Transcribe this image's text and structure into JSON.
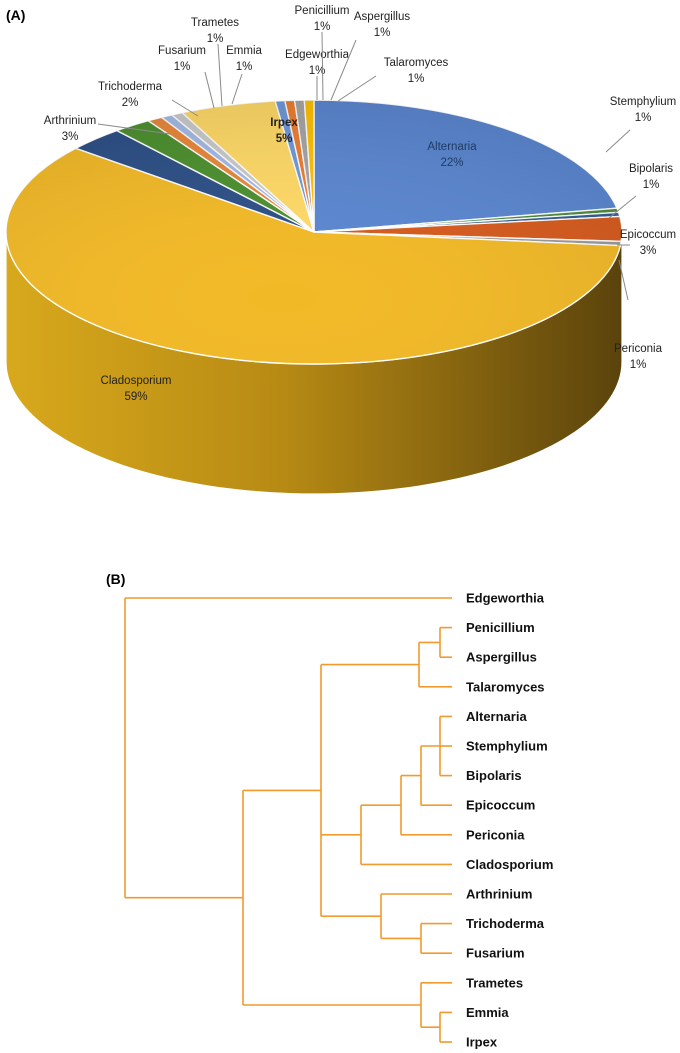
{
  "panel_a_label": "(A)",
  "panel_b_label": "(B)",
  "chart_data": [
    {
      "type": "pie",
      "title": "",
      "start_angle_deg": 0,
      "slices": [
        {
          "name": "Alternaria",
          "value": 22,
          "label": "22%",
          "color": "#5a86d0"
        },
        {
          "name": "Stemphylium",
          "value": 0.5,
          "label": "1%",
          "color": "#4d8a3c"
        },
        {
          "name": "Bipolaris",
          "value": 0.5,
          "label": "1%",
          "color": "#2e5c96"
        },
        {
          "name": "Epicoccum",
          "value": 3,
          "label": "3%",
          "color": "#d65a1c"
        },
        {
          "name": "Periconia",
          "value": 0.5,
          "label": "1%",
          "color": "#9a9a9a"
        },
        {
          "name": "Cladosporium",
          "value": 59,
          "label": "59%",
          "color": "#f2b926"
        },
        {
          "name": "Arthrinium",
          "value": 3,
          "label": "3%",
          "color": "#2c4f86"
        },
        {
          "name": "Trichoderma",
          "value": 2,
          "label": "2%",
          "color": "#4c8f2e"
        },
        {
          "name": "Fusarium",
          "value": 0.8,
          "label": "1%",
          "color": "#e8873a"
        },
        {
          "name": "Trametes",
          "value": 0.6,
          "label": "1%",
          "color": "#a3b9e6"
        },
        {
          "name": "Emmia",
          "value": 0.6,
          "label": "1%",
          "color": "#c9c9c9"
        },
        {
          "name": "Irpex",
          "value": 5,
          "label": "5%",
          "color": "#ffd966"
        },
        {
          "name": "Edgeworthia",
          "value": 0.5,
          "label": "1%",
          "color": "#6f99d8"
        },
        {
          "name": "Penicillium",
          "value": 0.5,
          "label": "1%",
          "color": "#ed7d31"
        },
        {
          "name": "Aspergillus",
          "value": 0.5,
          "label": "1%",
          "color": "#a5a5a5"
        },
        {
          "name": "Talaromyces",
          "value": 0.5,
          "label": "1%",
          "color": "#ffc000"
        }
      ]
    },
    {
      "type": "dendrogram",
      "title": "",
      "leaves": [
        "Edgeworthia",
        "Penicillium",
        "Aspergillus",
        "Talaromyces",
        "Alternaria",
        "Stemphylium",
        "Bipolaris",
        "Epicoccum",
        "Periconia",
        "Cladosporium",
        "Arthrinium",
        "Trichoderma",
        "Fusarium",
        "Trametes",
        "Emmia",
        "Irpex"
      ],
      "tree": {
        "children": [
          {
            "leaf": "Edgeworthia"
          },
          {
            "children": [
              {
                "children": [
                  {
                    "children": [
                      {
                        "children": [
                          {
                            "leaf": "Penicillium"
                          },
                          {
                            "leaf": "Aspergillus"
                          }
                        ]
                      },
                      {
                        "leaf": "Talaromyces"
                      }
                    ]
                  },
                  {
                    "children": [
                      {
                        "children": [
                          {
                            "children": [
                              {
                                "children": [
                                  {
                                    "leaf": "Alternaria"
                                  },
                                  {
                                    "leaf": "Stemphylium"
                                  },
                                  {
                                    "leaf": "Bipolaris"
                                  }
                                ]
                              },
                              {
                                "leaf": "Epicoccum"
                              }
                            ]
                          },
                          {
                            "leaf": "Periconia"
                          }
                        ]
                      },
                      {
                        "leaf": "Cladosporium"
                      }
                    ]
                  },
                  {
                    "children": [
                      {
                        "leaf": "Arthrinium"
                      },
                      {
                        "children": [
                          {
                            "leaf": "Trichoderma"
                          },
                          {
                            "leaf": "Fusarium"
                          }
                        ]
                      }
                    ]
                  }
                ]
              },
              {
                "children": [
                  {
                    "leaf": "Trametes"
                  },
                  {
                    "children": [
                      {
                        "leaf": "Emmia"
                      },
                      {
                        "leaf": "Irpex"
                      }
                    ]
                  }
                ]
              }
            ]
          }
        ]
      }
    }
  ]
}
